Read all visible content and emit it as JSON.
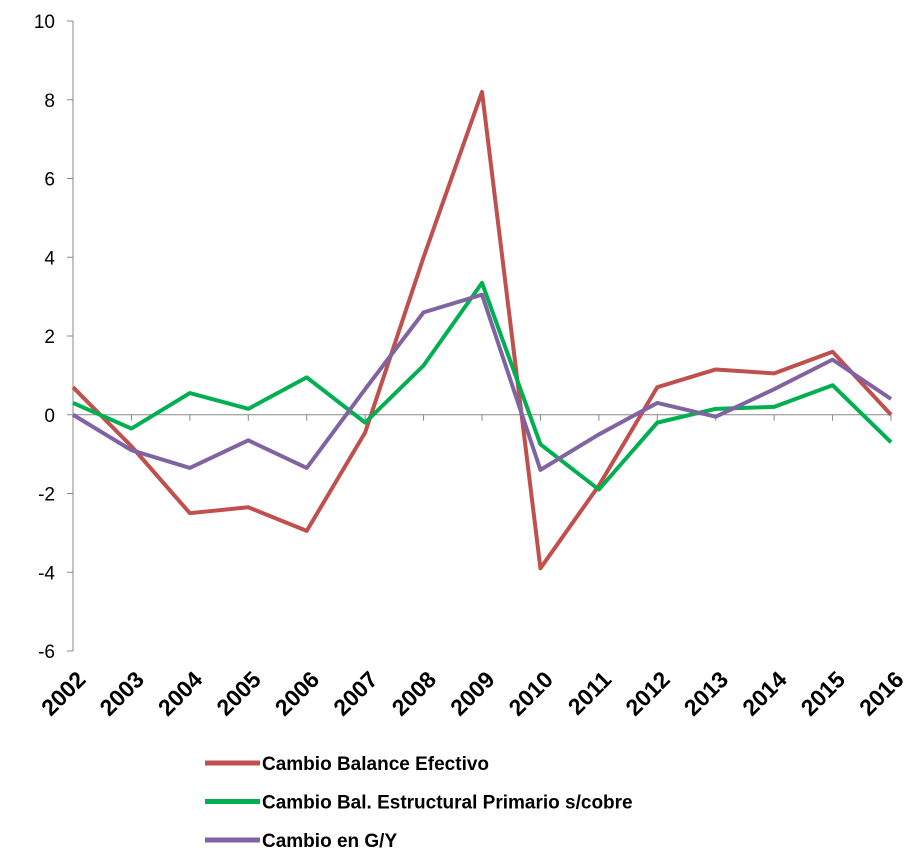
{
  "chart_data": {
    "type": "line",
    "categories": [
      "2002",
      "2003",
      "2004",
      "2005",
      "2006",
      "2007",
      "2008",
      "2009",
      "2010",
      "2011",
      "2012",
      "2013",
      "2014",
      "2015",
      "2016"
    ],
    "series": [
      {
        "name": "Cambio Balance Efectivo",
        "color": "#c0504d",
        "values": [
          0.7,
          -0.8,
          -2.5,
          -2.35,
          -2.95,
          -0.45,
          4.0,
          8.2,
          -3.9,
          -1.8,
          0.7,
          1.15,
          1.05,
          1.6,
          0.0
        ]
      },
      {
        "name": "Cambio Bal. Estructural Primario s/cobre",
        "color": "#00b050",
        "values": [
          0.3,
          -0.35,
          0.55,
          0.15,
          0.95,
          -0.2,
          1.25,
          3.35,
          -0.75,
          -1.9,
          -0.2,
          0.15,
          0.2,
          0.75,
          -0.7
        ]
      },
      {
        "name": "Cambio en G/Y",
        "color": "#8064a2",
        "values": [
          0.0,
          -0.9,
          -1.35,
          -0.65,
          -1.35,
          0.65,
          2.6,
          3.05,
          -1.4,
          -0.5,
          0.3,
          -0.05,
          0.65,
          1.4,
          0.4
        ]
      }
    ],
    "ylim": [
      -6,
      10
    ],
    "yticks": [
      -6,
      -4,
      -2,
      0,
      2,
      4,
      6,
      8,
      10
    ],
    "legend": "bottom"
  }
}
